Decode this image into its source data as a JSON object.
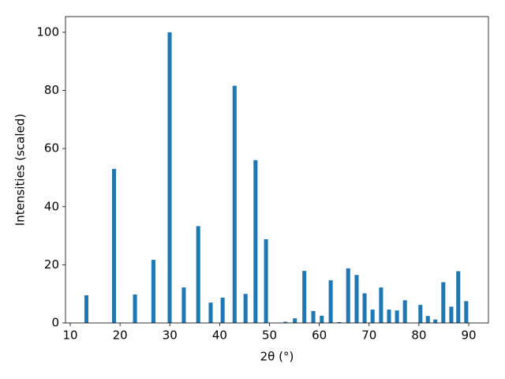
{
  "chart_data": {
    "type": "bar",
    "xlabel": "2θ (°)",
    "ylabel": "Intensities (scaled)",
    "color": "#1f77b4",
    "bar_width": 0.8,
    "x": [
      13.25,
      18.8,
      23.0,
      26.7,
      29.96,
      32.8,
      35.7,
      38.2,
      40.6,
      43.0,
      45.2,
      47.2,
      49.3,
      53.2,
      55.1,
      57.0,
      58.8,
      60.5,
      62.3,
      64.0,
      65.8,
      67.5,
      69.1,
      70.7,
      72.4,
      74.0,
      75.6,
      77.2,
      80.3,
      81.8,
      83.3,
      84.9,
      86.5,
      87.9,
      89.5
    ],
    "values": [
      9.5,
      53,
      9.8,
      21.7,
      100,
      12.2,
      33.3,
      7,
      8.7,
      81.6,
      10,
      56,
      28.8,
      0.4,
      1.6,
      17.9,
      4.1,
      2.5,
      14.7,
      0.3,
      18.8,
      16.5,
      10.2,
      4.6,
      12.2,
      4.6,
      4.3,
      7.8,
      6.2,
      2.4,
      1.2,
      14,
      5.6,
      17.8,
      7.5
    ],
    "xlim": [
      9.05,
      93.96
    ],
    "ylim": [
      0,
      105.4
    ],
    "xticks": [
      10,
      20,
      30,
      40,
      50,
      60,
      70,
      80,
      90
    ],
    "yticks": [
      0,
      20,
      40,
      60,
      80,
      100
    ]
  }
}
